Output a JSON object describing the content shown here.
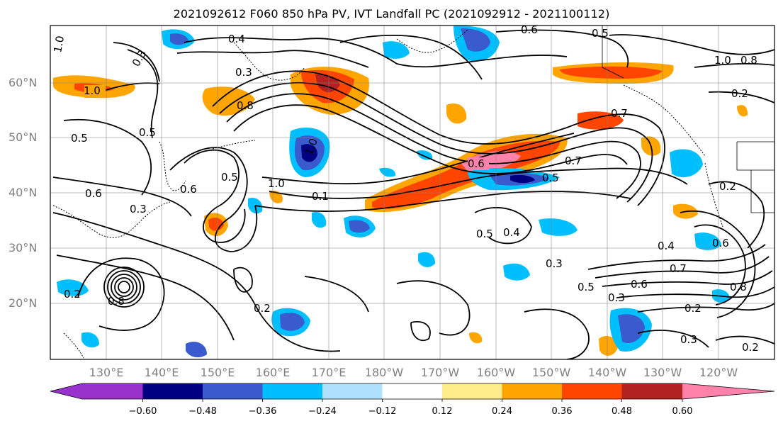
{
  "title": "2021092612 F060 850 hPa PV, IVT Landfall PC (2021092912 - 2021100112)",
  "lat_labels": [
    "60°N",
    "50°N",
    "40°N",
    "30°N",
    "20°N"
  ],
  "lon_labels": [
    "130°E",
    "140°E",
    "150°E",
    "160°E",
    "170°E",
    "180°W",
    "170°W",
    "160°W",
    "150°W",
    "140°W",
    "130°W",
    "120°W"
  ],
  "colorbar": {
    "colors": [
      "#9932CC",
      "#000080",
      "#3A5BCD",
      "#00BFFF",
      "#B0E2FF",
      "#FFFFFF",
      "#FFEC8B",
      "#FFA500",
      "#FF4500",
      "#B22222",
      "#FF82AB"
    ],
    "tick_labels": [
      "−0.60",
      "−0.48",
      "−0.36",
      "−0.24",
      "−0.12",
      "0.12",
      "0.24",
      "0.36",
      "0.48",
      "0.60"
    ]
  },
  "contour_labels": [
    "1.0",
    "0.4",
    "0.6",
    "0.5",
    "0.3",
    "1.0",
    "0.8",
    "0.2",
    "1.0",
    "0.8",
    "0.5",
    "0.5",
    "0.6",
    "0.6",
    "0.3",
    "0.5",
    "1.0",
    "0.1",
    "0.6",
    "0.7",
    "0.5",
    "0.5",
    "0.4",
    "0.3",
    "0.6",
    "0.7",
    "0.6",
    "0.8",
    "0.5",
    "0.3",
    "0.2",
    "0.3",
    "0.2",
    "0.2",
    "0.4",
    "0.7",
    "0.2",
    "1.0",
    "0.8",
    "0.2",
    "0.3"
  ]
}
